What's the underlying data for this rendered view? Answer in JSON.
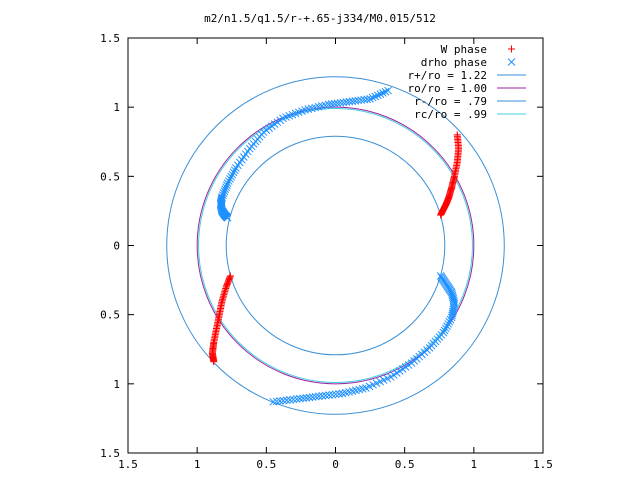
{
  "chart_data": {
    "type": "scatter",
    "title": "m2/n1.5/q1.5/r-+.65-j334/M0.015/512",
    "xlim": [
      -1.5,
      1.5
    ],
    "ylim": [
      -1.5,
      1.5
    ],
    "xticks": [
      -1.5,
      -1,
      -0.5,
      0,
      0.5,
      1,
      1.5
    ],
    "yticks": [
      -1.5,
      -1,
      -0.5,
      0,
      0.5,
      1,
      1.5
    ],
    "xtick_labels": [
      "1.5",
      "1",
      "0.5",
      "0",
      "0.5",
      "1",
      "1.5"
    ],
    "ytick_labels": [
      "1.5",
      "1",
      "0.5",
      "0",
      "0.5",
      "1",
      "1.5"
    ],
    "grid": false,
    "legend_position": "top-right",
    "series": [
      {
        "name": "W phase",
        "kind": "points",
        "marker": "+",
        "color": "#ff0000",
        "segments": [
          {
            "x": [
              0.88,
              0.89,
              0.88,
              0.86,
              0.84,
              0.82,
              0.8,
              0.78,
              0.76
            ],
            "y": [
              0.8,
              0.7,
              0.6,
              0.5,
              0.42,
              0.35,
              0.3,
              0.26,
              0.22
            ]
          },
          {
            "x": [
              -0.76,
              -0.79,
              -0.82,
              -0.84,
              -0.86,
              -0.88,
              -0.89,
              -0.88
            ],
            "y": [
              -0.22,
              -0.3,
              -0.4,
              -0.5,
              -0.6,
              -0.7,
              -0.78,
              -0.84
            ]
          }
        ]
      },
      {
        "name": "drho phase",
        "kind": "points",
        "marker": "x",
        "color": "#1e90ff",
        "segments": [
          {
            "x": [
              0.38,
              0.25,
              0.1,
              -0.05,
              -0.22,
              -0.38,
              -0.52,
              -0.62,
              -0.72,
              -0.78,
              -0.82,
              -0.83,
              -0.82,
              -0.8,
              -0.78
            ],
            "y": [
              1.12,
              1.06,
              1.04,
              1.02,
              0.98,
              0.92,
              0.82,
              0.7,
              0.56,
              0.45,
              0.35,
              0.3,
              0.25,
              0.22,
              0.2
            ]
          },
          {
            "x": [
              0.76,
              0.8,
              0.84,
              0.86,
              0.84,
              0.78,
              0.68,
              0.55,
              0.4,
              0.22,
              0.05,
              -0.12,
              -0.28,
              -0.45
            ],
            "y": [
              -0.22,
              -0.28,
              -0.34,
              -0.42,
              -0.52,
              -0.63,
              -0.74,
              -0.85,
              -0.95,
              -1.03,
              -1.07,
              -1.09,
              -1.11,
              -1.13
            ]
          }
        ]
      },
      {
        "name": "r+/ro = 1.22",
        "kind": "circle",
        "r": 1.22,
        "color": "#3a8fd6"
      },
      {
        "name": "ro/ro = 1.00",
        "kind": "circle",
        "r": 1.0,
        "color": "#a020a0"
      },
      {
        "name": "r-/ro = .79",
        "kind": "circle",
        "r": 0.79,
        "color": "#3a8fd6"
      },
      {
        "name": "rc/ro = .99",
        "kind": "circle",
        "r": 0.99,
        "color": "#40d0e0"
      }
    ]
  }
}
